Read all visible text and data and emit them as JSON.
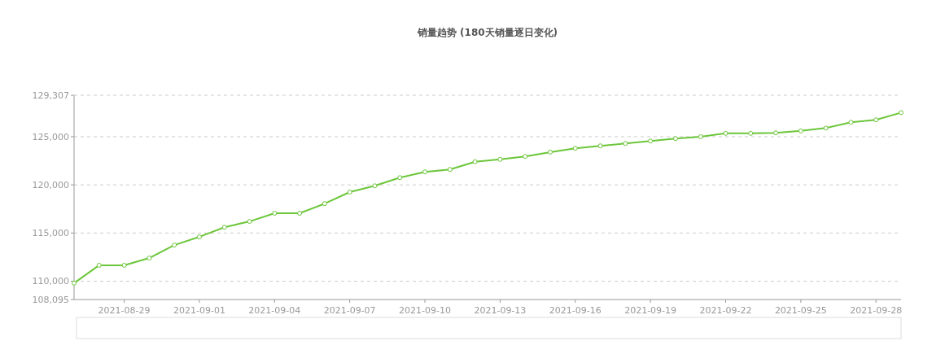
{
  "chart_data": {
    "type": "line",
    "title": "销量趋势 (180天销量逐日变化)",
    "x": [
      "2021-08-27",
      "2021-08-28",
      "2021-08-29",
      "2021-08-30",
      "2021-08-31",
      "2021-09-01",
      "2021-09-02",
      "2021-09-03",
      "2021-09-04",
      "2021-09-05",
      "2021-09-06",
      "2021-09-07",
      "2021-09-08",
      "2021-09-09",
      "2021-09-10",
      "2021-09-11",
      "2021-09-12",
      "2021-09-13",
      "2021-09-14",
      "2021-09-15",
      "2021-09-16",
      "2021-09-17",
      "2021-09-18",
      "2021-09-19",
      "2021-09-20",
      "2021-09-21",
      "2021-09-22",
      "2021-09-23",
      "2021-09-24",
      "2021-09-25",
      "2021-09-26",
      "2021-09-27",
      "2021-09-28",
      "2021-09-29"
    ],
    "series": [
      {
        "color": "#6cc63a",
        "values": [
          109800,
          111650,
          111650,
          112400,
          113750,
          114600,
          115600,
          116200,
          117050,
          117050,
          118050,
          119250,
          119900,
          120750,
          121350,
          121600,
          122400,
          122650,
          122950,
          123400,
          123800,
          124050,
          124300,
          124550,
          124800,
          125000,
          125350,
          125350,
          125400,
          125600,
          125900,
          126500,
          126750,
          127500
        ]
      }
    ],
    "xlim": [
      "2021-08-27",
      "2021-09-29"
    ],
    "xticks": [
      "2021-08-29",
      "2021-09-01",
      "2021-09-04",
      "2021-09-07",
      "2021-09-10",
      "2021-09-13",
      "2021-09-16",
      "2021-09-19",
      "2021-09-22",
      "2021-09-25",
      "2021-09-28"
    ],
    "ylim": [
      108095,
      129307
    ],
    "yticks": [
      {
        "value": 108095,
        "label": "108,095"
      },
      {
        "value": 110000,
        "label": "110,000"
      },
      {
        "value": 115000,
        "label": "115,000"
      },
      {
        "value": 120000,
        "label": "120,000"
      },
      {
        "value": 125000,
        "label": "125,000"
      },
      {
        "value": 129307,
        "label": "129,307"
      }
    ],
    "grid": "y",
    "marker": "circle",
    "line_style": "solid"
  }
}
